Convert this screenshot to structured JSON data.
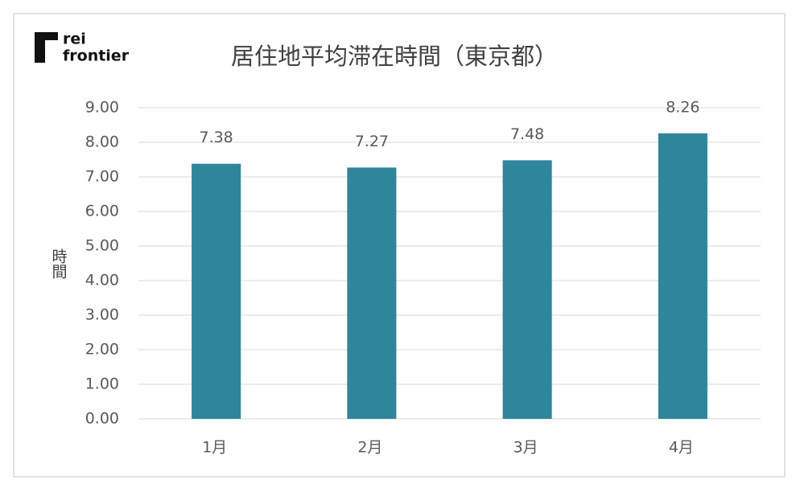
{
  "logo": {
    "line1": "rei",
    "line2": "frontier"
  },
  "chart_data": {
    "type": "bar",
    "title": "居住地平均滞在時間（東京都）",
    "y_label": "時間",
    "categories": [
      "1月",
      "2月",
      "3月",
      "4月"
    ],
    "values": [
      7.38,
      7.27,
      7.48,
      8.26
    ],
    "color": "#2e869b",
    "ylim": [
      0,
      9
    ],
    "yticks": [
      {
        "value": 0,
        "label": "0.00"
      },
      {
        "value": 1,
        "label": "1.00"
      },
      {
        "value": 2,
        "label": "2.00"
      },
      {
        "value": 3,
        "label": "3.00"
      },
      {
        "value": 4,
        "label": "4.00"
      },
      {
        "value": 5,
        "label": "5.00"
      },
      {
        "value": 6,
        "label": "6.00"
      },
      {
        "value": 7,
        "label": "7.00"
      },
      {
        "value": 8,
        "label": "8.00"
      },
      {
        "value": 9,
        "label": "9.00"
      }
    ],
    "grid": true
  }
}
